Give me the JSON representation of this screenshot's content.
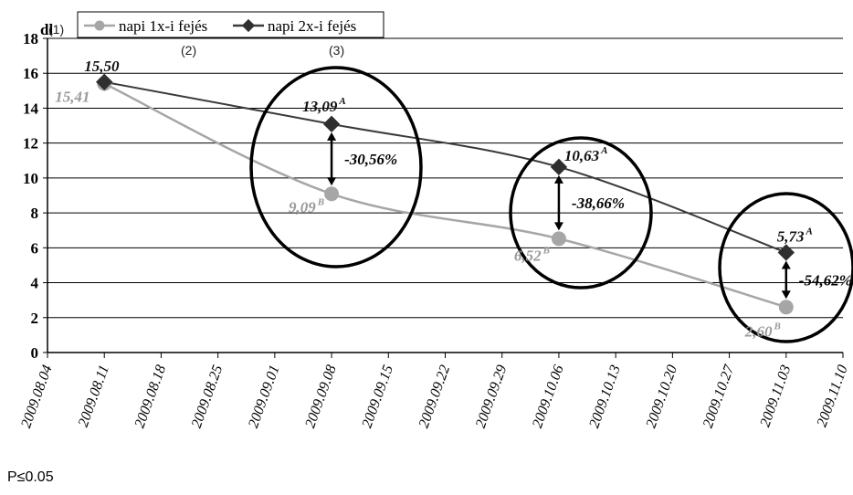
{
  "chart_data": {
    "type": "line",
    "ylabel": "dl",
    "ylim": [
      0,
      18
    ],
    "yticks": [
      0,
      2,
      4,
      6,
      8,
      10,
      12,
      14,
      16,
      18
    ],
    "xticks": [
      "2009.08.04",
      "2009.08.11",
      "2009.08.18",
      "2009.08.25",
      "2009.09.01",
      "2009.09.08",
      "2009.09.15",
      "2009.09.22",
      "2009.09.29",
      "2009.10.06",
      "2009.10.13",
      "2009.10.20",
      "2009.10.27",
      "2009.11.03",
      "2009.11.10"
    ],
    "x": [
      "2009.08.11",
      "2009.09.08",
      "2009.10.06",
      "2009.11.03"
    ],
    "grid": "horizontal",
    "legend_position": "top-left",
    "series": [
      {
        "name": "napi 1x-i fejés",
        "color": "#a6a6a6",
        "values": [
          15.41,
          9.09,
          6.52,
          2.6
        ],
        "labels": [
          "15,41",
          "9,09",
          "6,52",
          "2,60"
        ],
        "sups": [
          "",
          "B",
          "B",
          "B"
        ]
      },
      {
        "name": "napi 2x-i fejés",
        "color": "#3a3a3a",
        "values": [
          15.5,
          13.09,
          10.63,
          5.73
        ],
        "labels": [
          "15,50",
          "13,09",
          "10,63",
          "5,73"
        ],
        "sups": [
          "",
          "A",
          "A",
          "A"
        ]
      }
    ],
    "annotations": [
      {
        "x": "2009.09.08",
        "text": "-30,56%"
      },
      {
        "x": "2009.10.06",
        "text": "-38,66%"
      },
      {
        "x": "2009.11.03",
        "text": "-54,62%"
      }
    ],
    "markers": [
      "(1)",
      "(2)",
      "(3)"
    ]
  },
  "footnote": "P≤0.05"
}
